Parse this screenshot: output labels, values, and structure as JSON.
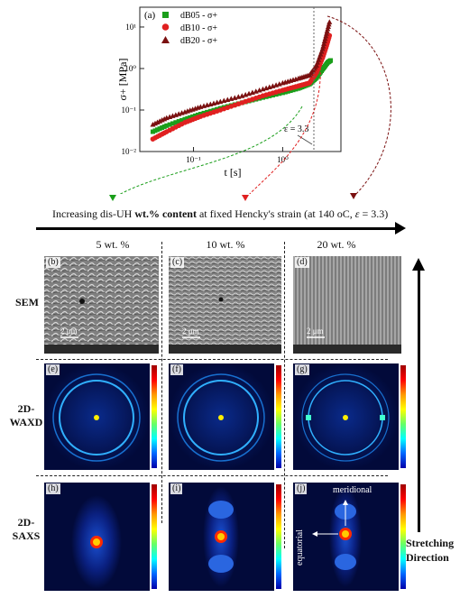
{
  "chart_data": {
    "type": "scatter",
    "panel_label": "(a)",
    "xlabel": "t [s]",
    "ylabel": "σ+ [MPa]",
    "x_scale": "log",
    "y_scale": "log",
    "xlim": [
      0.025,
      4.5
    ],
    "ylim": [
      0.01,
      30
    ],
    "x_ticks": [
      {
        "v": 0.1,
        "label": "10⁻¹"
      },
      {
        "v": 1,
        "label": "10⁰"
      }
    ],
    "y_ticks": [
      {
        "v": 0.01,
        "label": "10⁻²"
      },
      {
        "v": 0.1,
        "label": "10⁻¹"
      },
      {
        "v": 1,
        "label": "10⁰"
      },
      {
        "v": 10,
        "label": "10¹"
      }
    ],
    "annotation": "ε = 3.3",
    "legend": "top-left",
    "series": [
      {
        "name": "dB05 - σ+",
        "color": "#1a9e1a",
        "marker": "square",
        "points": [
          [
            0.035,
            0.03
          ],
          [
            0.05,
            0.042
          ],
          [
            0.08,
            0.06
          ],
          [
            0.12,
            0.08
          ],
          [
            0.2,
            0.11
          ],
          [
            0.35,
            0.15
          ],
          [
            0.6,
            0.2
          ],
          [
            1.0,
            0.26
          ],
          [
            1.5,
            0.33
          ],
          [
            2.0,
            0.42
          ],
          [
            2.4,
            0.6
          ],
          [
            2.8,
            0.95
          ],
          [
            3.2,
            1.4
          ],
          [
            3.5,
            1.6
          ]
        ]
      },
      {
        "name": "dB10 - σ+",
        "color": "#e02020",
        "marker": "circle",
        "points": [
          [
            0.035,
            0.02
          ],
          [
            0.05,
            0.03
          ],
          [
            0.08,
            0.05
          ],
          [
            0.12,
            0.07
          ],
          [
            0.2,
            0.1
          ],
          [
            0.35,
            0.15
          ],
          [
            0.6,
            0.22
          ],
          [
            1.0,
            0.3
          ],
          [
            1.5,
            0.38
          ],
          [
            2.0,
            0.45
          ],
          [
            2.4,
            0.8
          ],
          [
            2.8,
            1.8
          ],
          [
            3.1,
            3.5
          ],
          [
            3.4,
            7.0
          ]
        ]
      },
      {
        "name": "dB20 - σ+",
        "color": "#7a1010",
        "marker": "triangle",
        "points": [
          [
            0.035,
            0.045
          ],
          [
            0.05,
            0.065
          ],
          [
            0.08,
            0.09
          ],
          [
            0.12,
            0.12
          ],
          [
            0.2,
            0.16
          ],
          [
            0.35,
            0.22
          ],
          [
            0.6,
            0.32
          ],
          [
            1.0,
            0.45
          ],
          [
            1.5,
            0.58
          ],
          [
            2.0,
            0.7
          ],
          [
            2.4,
            1.2
          ],
          [
            2.8,
            3.0
          ],
          [
            3.1,
            7.0
          ],
          [
            3.4,
            15.0
          ]
        ]
      }
    ]
  },
  "caption": {
    "prefix": "Increasing dis-UH ",
    "bold": "wt.% content",
    "suffix": " at fixed Hencky's strain (at 140 ",
    "unit": "oC, ",
    "eps": "ε",
    "tail": " = 3.3)"
  },
  "columns": [
    "5 wt. %",
    "10 wt. %",
    "20 wt. %"
  ],
  "rows": {
    "sem": "SEM",
    "waxd_1": "2D-",
    "waxd_2": "WAXD",
    "saxs_1": "2D-",
    "saxs_2": "SAXS"
  },
  "panel_labels": [
    "(b)",
    "(c)",
    "(d)",
    "(e)",
    "(f)",
    "(g)",
    "(h)",
    "(i)",
    "(j)"
  ],
  "scale_bar": "2 μm",
  "saxs_annotations": {
    "meridional": "meridional",
    "equatorial": "equatorial"
  },
  "stretching": {
    "line1": "Stretching",
    "line2": "Direction"
  },
  "colors": {
    "dark_bg": "#020a3a",
    "arrow": "#000000"
  }
}
